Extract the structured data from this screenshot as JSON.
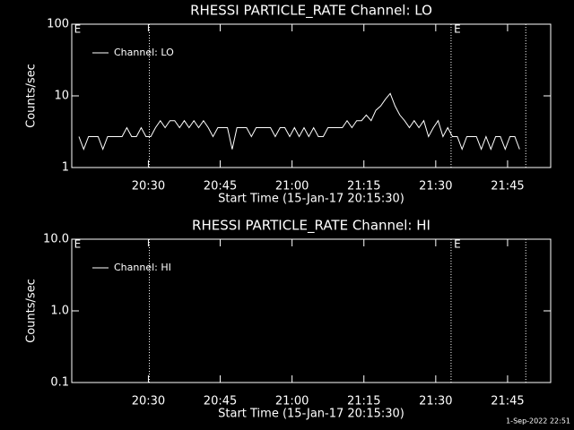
{
  "chart_data": [
    {
      "type": "line",
      "title": "RHESSI PARTICLE_RATE Channel: LO",
      "xlabel": "Start Time (15-Jan-17 20:15:30)",
      "ylabel": "Counts/sec",
      "log_y": true,
      "xlim": [
        14,
        114
      ],
      "ylim": [
        1,
        100
      ],
      "yticks": [
        1,
        10,
        100
      ],
      "xticks": [
        {
          "value": 30,
          "label": "20:30"
        },
        {
          "value": 45,
          "label": "20:45"
        },
        {
          "value": 60,
          "label": "21:00"
        },
        {
          "value": 75,
          "label": "21:15"
        },
        {
          "value": 90,
          "label": "21:30"
        },
        {
          "value": 105,
          "label": "21:45"
        }
      ],
      "vlines": [
        30.2,
        93.2,
        108.8
      ],
      "annotations": [
        {
          "text": "E",
          "x": 14.5
        },
        {
          "text": "E",
          "x": 93.8
        }
      ],
      "legend": "upper left",
      "series": [
        {
          "name": "Channel: LO",
          "color": "#ffffff",
          "x": [
            15.5,
            16.5,
            17.5,
            18.5,
            19.5,
            20.5,
            21.5,
            22.5,
            23.5,
            24.5,
            25.5,
            26.5,
            27.5,
            28.5,
            29.5,
            30.5,
            31.5,
            32.5,
            33.5,
            34.5,
            35.5,
            36.5,
            37.5,
            38.5,
            39.5,
            40.5,
            41.5,
            42.5,
            43.5,
            44.5,
            45.5,
            46.5,
            47.5,
            48.5,
            49.5,
            50.5,
            51.5,
            52.5,
            53.5,
            54.5,
            55.5,
            56.5,
            57.5,
            58.5,
            59.5,
            60.5,
            61.5,
            62.5,
            63.5,
            64.5,
            65.5,
            66.5,
            67.5,
            68.5,
            69.5,
            70.5,
            71.5,
            72.5,
            73.5,
            74.5,
            75.5,
            76.5,
            77.5,
            78.5,
            79.5,
            80.5,
            81.5,
            82.5,
            83.5,
            84.5,
            85.5,
            86.5,
            87.5,
            88.5,
            89.5,
            90.5,
            91.5,
            92.5,
            93.5,
            94.5,
            95.5,
            96.5,
            97.5,
            98.5,
            99.5,
            100.5,
            101.5,
            102.5,
            103.5,
            104.5,
            105.5,
            106.5,
            107.5
          ],
          "values": [
            2.7,
            1.8,
            2.7,
            2.7,
            2.7,
            1.8,
            2.7,
            2.7,
            2.7,
            2.7,
            3.6,
            2.7,
            2.7,
            3.6,
            2.7,
            2.7,
            3.6,
            4.5,
            3.6,
            4.5,
            4.5,
            3.6,
            4.5,
            3.6,
            4.5,
            3.6,
            4.5,
            3.6,
            2.7,
            3.6,
            3.6,
            3.6,
            1.8,
            3.6,
            3.6,
            3.6,
            2.7,
            3.6,
            3.6,
            3.6,
            3.6,
            2.7,
            3.6,
            3.6,
            2.7,
            3.6,
            2.7,
            3.6,
            2.7,
            3.6,
            2.7,
            2.7,
            3.6,
            3.6,
            3.6,
            3.6,
            4.5,
            3.6,
            4.5,
            4.5,
            5.4,
            4.5,
            6.3,
            7.2,
            9.0,
            10.8,
            7.2,
            5.4,
            4.5,
            3.6,
            4.5,
            3.6,
            4.5,
            2.7,
            3.6,
            4.5,
            2.7,
            3.6,
            2.7,
            2.7,
            1.8,
            2.7,
            2.7,
            2.7,
            1.8,
            2.7,
            1.8,
            2.7,
            2.7,
            1.8,
            2.7,
            2.7,
            1.8
          ]
        }
      ]
    },
    {
      "type": "line",
      "title": "RHESSI PARTICLE_RATE Channel: HI",
      "xlabel": "Start Time (15-Jan-17 20:15:30)",
      "ylabel": "Counts/sec",
      "log_y": true,
      "xlim": [
        14,
        114
      ],
      "ylim": [
        0.1,
        10
      ],
      "yticks": [
        {
          "value": 0.1,
          "label": "0.1"
        },
        {
          "value": 1,
          "label": "1.0"
        },
        {
          "value": 10,
          "label": "10.0"
        }
      ],
      "xticks": [
        {
          "value": 30,
          "label": "20:30"
        },
        {
          "value": 45,
          "label": "20:45"
        },
        {
          "value": 60,
          "label": "21:00"
        },
        {
          "value": 75,
          "label": "21:15"
        },
        {
          "value": 90,
          "label": "21:30"
        },
        {
          "value": 105,
          "label": "21:45"
        }
      ],
      "vlines": [
        30.2,
        93.2,
        108.8
      ],
      "annotations": [
        {
          "text": "E",
          "x": 14.5
        },
        {
          "text": "E",
          "x": 93.8
        }
      ],
      "legend": "upper left",
      "series": [
        {
          "name": "Channel: HI",
          "color": "#ffffff",
          "x": [],
          "values": []
        }
      ]
    }
  ],
  "footer": "1-Sep-2022 22:51"
}
